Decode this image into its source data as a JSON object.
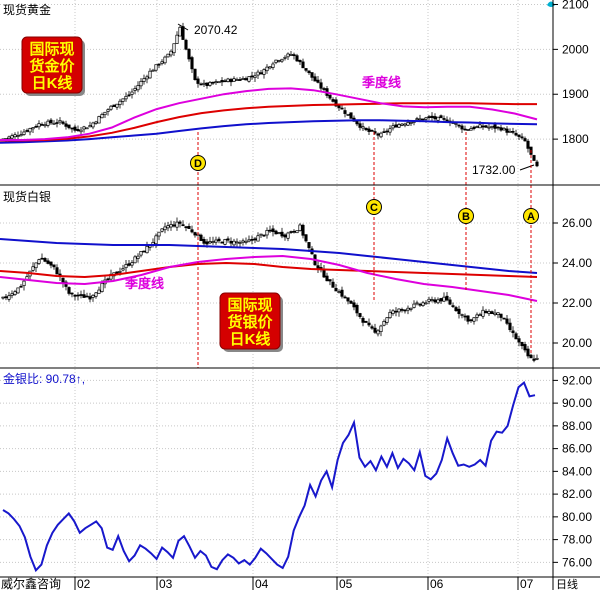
{
  "chart_data": [
    {
      "type": "candlestick",
      "title": "现货黄金",
      "ylim": [
        1700,
        2110
      ],
      "y_ticks": [
        1800,
        1900,
        2000,
        2100
      ],
      "annotations": {
        "high": "2070.42",
        "low": "1732.00",
        "ma_label": "季度线",
        "box_label": [
          "国际现",
          "货金价",
          "日K线"
        ],
        "markers": [
          "D"
        ]
      },
      "series": [
        {
          "kind": "ma",
          "color": "#1010cc",
          "values": [
            1792,
            1793,
            1795,
            1797,
            1800,
            1804,
            1808,
            1812,
            1818,
            1824,
            1829,
            1833,
            1836,
            1838,
            1840,
            1841,
            1842,
            1842,
            1841,
            1840,
            1838,
            1837,
            1835,
            1834,
            1833
          ]
        },
        {
          "kind": "ma",
          "color": "#dd0000",
          "values": [
            1797,
            1797,
            1798,
            1801,
            1806,
            1814,
            1825,
            1838,
            1849,
            1858,
            1864,
            1869,
            1872,
            1874,
            1876,
            1877,
            1878,
            1879,
            1880,
            1880,
            1880,
            1880,
            1879,
            1878,
            1878
          ]
        },
        {
          "kind": "ma",
          "color": "#dd00dd",
          "values": [
            1798,
            1798,
            1800,
            1804,
            1812,
            1826,
            1848,
            1867,
            1880,
            1890,
            1900,
            1907,
            1912,
            1913,
            1909,
            1900,
            1890,
            1880,
            1873,
            1871,
            1872,
            1872,
            1866,
            1857,
            1844
          ]
        }
      ]
    },
    {
      "type": "candlestick",
      "title": "现货白银",
      "ylim": [
        18.8,
        27.8
      ],
      "y_ticks": [
        20.0,
        22.0,
        24.0,
        26.0
      ],
      "annotations": {
        "ma_label": "季度线",
        "box_label": [
          "国际现",
          "货银价",
          "日K线"
        ],
        "markers": [
          "C",
          "B",
          "A"
        ]
      },
      "series": [
        {
          "kind": "ma",
          "color": "#1010cc",
          "values": [
            25.2,
            25.1,
            25.0,
            24.95,
            24.9,
            24.9,
            24.9,
            24.85,
            24.8,
            24.75,
            24.7,
            24.6,
            24.5,
            24.35,
            24.2,
            24.05,
            23.9,
            23.75,
            23.6,
            23.5
          ]
        },
        {
          "kind": "ma",
          "color": "#dd0000",
          "values": [
            23.6,
            23.5,
            23.35,
            23.3,
            23.4,
            23.6,
            23.8,
            23.95,
            24.0,
            23.95,
            23.8,
            23.7,
            23.65,
            23.6,
            23.55,
            23.5,
            23.45,
            23.4,
            23.35,
            23.3
          ]
        },
        {
          "kind": "ma",
          "color": "#dd00dd",
          "values": [
            23.3,
            23.15,
            23.0,
            22.95,
            23.1,
            23.4,
            23.8,
            24.05,
            24.2,
            24.3,
            24.35,
            24.2,
            23.9,
            23.5,
            23.2,
            22.95,
            22.8,
            22.6,
            22.4,
            22.1
          ]
        }
      ]
    },
    {
      "type": "line",
      "title": "金银比: 90.78↑,",
      "ylim": [
        74.8,
        93
      ],
      "y_ticks": [
        76.0,
        78.0,
        80.0,
        82.0,
        84.0,
        86.0,
        88.0,
        90.0,
        92.0
      ],
      "series": [
        {
          "color": "#1818cc",
          "values": [
            80.6,
            80.3,
            79.8,
            79.2,
            78.2,
            76.5,
            75.3,
            75.8,
            77.5,
            78.6,
            79.3,
            79.8,
            80.3,
            79.6,
            78.6,
            79.0,
            79.3,
            79.6,
            79.0,
            77.3,
            77.1,
            78.3,
            77.0,
            76.1,
            76.6,
            77.5,
            77.2,
            76.8,
            76.3,
            77.3,
            76.9,
            76.4,
            77.9,
            78.3,
            77.4,
            76.4,
            77.0,
            76.6,
            75.6,
            75.4,
            76.2,
            76.7,
            76.4,
            75.9,
            76.2,
            75.8,
            76.4,
            77.2,
            76.8,
            76.3,
            75.8,
            75.5,
            76.5,
            78.8,
            80.0,
            81.0,
            82.8,
            81.8,
            83.2,
            84.0,
            82.6,
            85.0,
            86.5,
            87.2,
            88.3,
            85.2,
            84.4,
            84.9,
            84.1,
            85.3,
            84.4,
            85.6,
            84.3,
            85.1,
            84.7,
            84.1,
            85.7,
            83.6,
            83.3,
            83.8,
            85.0,
            86.9,
            85.6,
            84.5,
            84.6,
            84.4,
            84.6,
            85.0,
            84.5,
            86.7,
            87.5,
            87.4,
            88.0,
            89.8,
            91.4,
            91.8,
            90.6,
            90.7
          ]
        }
      ]
    }
  ],
  "x_axis": {
    "labels": [
      "02",
      "03",
      "04",
      "05",
      "06",
      "07"
    ],
    "unit": "日线"
  },
  "watermark": "威尔鑫咨询"
}
